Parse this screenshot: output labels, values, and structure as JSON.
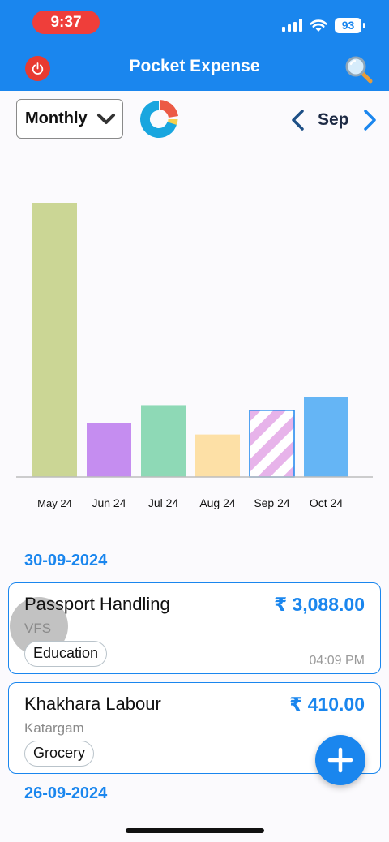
{
  "status_bar": {
    "time": "9:37",
    "battery": "93"
  },
  "app_bar": {
    "title": "Pocket Expense"
  },
  "filters": {
    "period": "Monthly",
    "month": "Sep"
  },
  "colors": {
    "accent": "#1a86ee",
    "power": "#e83a31",
    "selected_bar_stripe": "#e7b3ea"
  },
  "chart_data": {
    "type": "bar",
    "categories": [
      "May 24",
      "Jun 24",
      "Jul 24",
      "Aug 24",
      "Sep 24",
      "Oct 24"
    ],
    "values": [
      1000,
      198,
      262,
      155,
      243,
      292
    ],
    "colors": [
      "#cbd695",
      "#c58df0",
      "#8ed9b6",
      "#fde0a6",
      "striped",
      "#65b5f5"
    ],
    "selected": "Sep 24",
    "ylim": [
      0,
      1000
    ],
    "grid": false
  },
  "transactions": {
    "groups": [
      {
        "date": "30-09-2024",
        "items": [
          {
            "title": "Passport Handling",
            "amount": "₹ 3,088.00",
            "place": "VFS",
            "category": "Education",
            "time": "04:09 PM"
          },
          {
            "title": "Khakhara Labour",
            "amount": "₹ 410.00",
            "place": "Katargam",
            "category": "Grocery",
            "time": "04"
          }
        ]
      },
      {
        "date": "26-09-2024",
        "items": []
      }
    ]
  }
}
